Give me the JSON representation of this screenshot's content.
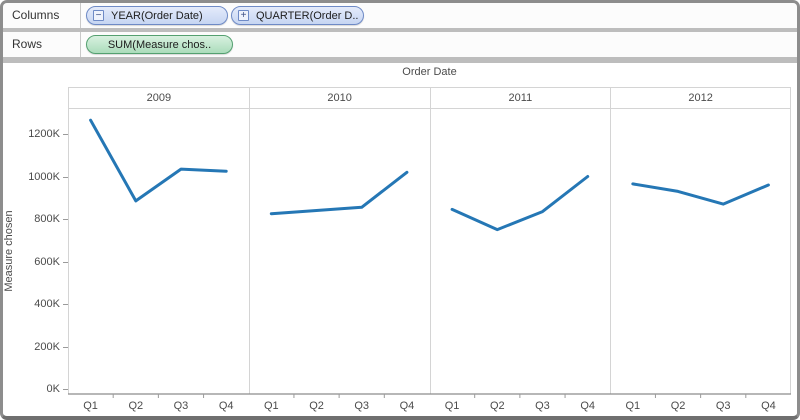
{
  "shelves": {
    "columns": {
      "label": "Columns",
      "pills": [
        {
          "text": "YEAR(Order Date)",
          "toggle_glyph": "−",
          "toggle": "collapse",
          "type": "dimension"
        },
        {
          "text": "QUARTER(Order D..",
          "toggle_glyph": "+",
          "toggle": "expand",
          "type": "dimension"
        }
      ]
    },
    "rows": {
      "label": "Rows",
      "pills": [
        {
          "text": "SUM(Measure chos..",
          "type": "measure"
        }
      ]
    }
  },
  "chart_data": {
    "type": "line",
    "title": "Order Date",
    "xlabel": "",
    "ylabel": "Measure chosen",
    "categories": [
      "Q1",
      "Q2",
      "Q3",
      "Q4"
    ],
    "series": [
      {
        "name": "2009",
        "values": [
          1265000,
          885000,
          1035000,
          1025000
        ]
      },
      {
        "name": "2010",
        "values": [
          825000,
          840000,
          855000,
          1020000
        ]
      },
      {
        "name": "2011",
        "values": [
          845000,
          750000,
          835000,
          1000000
        ]
      },
      {
        "name": "2012",
        "values": [
          965000,
          930000,
          870000,
          960000
        ]
      }
    ],
    "y_ticks": [
      0,
      200000,
      400000,
      600000,
      800000,
      1000000,
      1200000
    ],
    "y_tick_labels": [
      "0K",
      "200K",
      "400K",
      "600K",
      "800K",
      "1000K",
      "1200K"
    ],
    "ylim": [
      0,
      1322000
    ],
    "grid": false,
    "legend": "none",
    "line_color": "#2577B5"
  },
  "colors": {
    "line": "#2577B5",
    "pill_dimension_border": "#6e8ac6",
    "pill_measure_border": "#54a070",
    "panel_border": "#d4d4d4",
    "axis_line": "#8c8c8c",
    "tick_mark": "#9a9a9a",
    "frame_border": "#8d8d8d",
    "separator": "#bdbdbd"
  }
}
